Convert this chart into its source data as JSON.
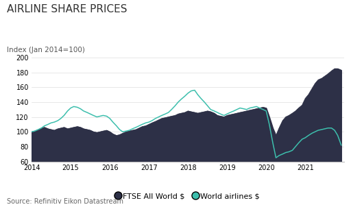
{
  "title": "AIRLINE SHARE PRICES",
  "ylabel_text": "Index (Jan 2014=100)",
  "source": "Source: Refinitiv Eikon Datastream",
  "ylim": [
    60,
    205
  ],
  "yticks": [
    60,
    80,
    100,
    120,
    140,
    160,
    180,
    200
  ],
  "xlim": [
    2014.0,
    2021.99
  ],
  "background_color": "#ffffff",
  "ftse_color": "#2d3047",
  "airlines_color": "#3dbfad",
  "ftse_label": "FTSE All World $",
  "airlines_label": "World airlines $",
  "title_fontsize": 11,
  "source_fontsize": 7,
  "tick_fontsize": 7,
  "ylabel_fontsize": 7.5,
  "legend_fontsize": 8,
  "ftse_data": {
    "x": [
      2014.0,
      2014.08,
      2014.17,
      2014.25,
      2014.33,
      2014.42,
      2014.5,
      2014.58,
      2014.67,
      2014.75,
      2014.83,
      2014.92,
      2015.0,
      2015.08,
      2015.17,
      2015.25,
      2015.33,
      2015.42,
      2015.5,
      2015.58,
      2015.67,
      2015.75,
      2015.83,
      2015.92,
      2016.0,
      2016.08,
      2016.17,
      2016.25,
      2016.33,
      2016.42,
      2016.5,
      2016.58,
      2016.67,
      2016.75,
      2016.83,
      2016.92,
      2017.0,
      2017.08,
      2017.17,
      2017.25,
      2017.33,
      2017.42,
      2017.5,
      2017.58,
      2017.67,
      2017.75,
      2017.83,
      2017.92,
      2018.0,
      2018.08,
      2018.17,
      2018.25,
      2018.33,
      2018.42,
      2018.5,
      2018.58,
      2018.67,
      2018.75,
      2018.83,
      2018.92,
      2019.0,
      2019.08,
      2019.17,
      2019.25,
      2019.33,
      2019.42,
      2019.5,
      2019.58,
      2019.67,
      2019.75,
      2019.83,
      2019.92,
      2020.0,
      2020.08,
      2020.17,
      2020.25,
      2020.33,
      2020.42,
      2020.5,
      2020.58,
      2020.67,
      2020.75,
      2020.83,
      2020.92,
      2021.0,
      2021.08,
      2021.17,
      2021.25,
      2021.33,
      2021.42,
      2021.5,
      2021.58,
      2021.67,
      2021.75,
      2021.83,
      2021.92
    ],
    "y": [
      100,
      101,
      103,
      105,
      106,
      104,
      103,
      102,
      104,
      105,
      106,
      104,
      105,
      106,
      107,
      106,
      104,
      103,
      102,
      100,
      99,
      100,
      101,
      102,
      100,
      97,
      95,
      96,
      98,
      100,
      101,
      102,
      103,
      105,
      107,
      108,
      110,
      112,
      114,
      116,
      118,
      119,
      120,
      121,
      122,
      124,
      125,
      126,
      128,
      127,
      126,
      125,
      126,
      127,
      128,
      127,
      125,
      122,
      121,
      120,
      122,
      123,
      124,
      125,
      126,
      127,
      128,
      129,
      130,
      131,
      132,
      133,
      132,
      120,
      105,
      95,
      105,
      115,
      120,
      122,
      125,
      128,
      132,
      136,
      145,
      150,
      158,
      165,
      170,
      172,
      175,
      178,
      182,
      185,
      185,
      183
    ]
  },
  "airlines_data": {
    "x": [
      2014.0,
      2014.08,
      2014.17,
      2014.25,
      2014.33,
      2014.42,
      2014.5,
      2014.58,
      2014.67,
      2014.75,
      2014.83,
      2014.92,
      2015.0,
      2015.08,
      2015.17,
      2015.25,
      2015.33,
      2015.42,
      2015.5,
      2015.58,
      2015.67,
      2015.75,
      2015.83,
      2015.92,
      2016.0,
      2016.08,
      2016.17,
      2016.25,
      2016.33,
      2016.42,
      2016.5,
      2016.58,
      2016.67,
      2016.75,
      2016.83,
      2016.92,
      2017.0,
      2017.08,
      2017.17,
      2017.25,
      2017.33,
      2017.42,
      2017.5,
      2017.58,
      2017.67,
      2017.75,
      2017.83,
      2017.92,
      2018.0,
      2018.08,
      2018.17,
      2018.25,
      2018.33,
      2018.42,
      2018.5,
      2018.58,
      2018.67,
      2018.75,
      2018.83,
      2018.92,
      2019.0,
      2019.08,
      2019.17,
      2019.25,
      2019.33,
      2019.42,
      2019.5,
      2019.58,
      2019.67,
      2019.75,
      2019.83,
      2019.92,
      2020.0,
      2020.08,
      2020.17,
      2020.25,
      2020.33,
      2020.42,
      2020.5,
      2020.58,
      2020.67,
      2020.75,
      2020.83,
      2020.92,
      2021.0,
      2021.08,
      2021.17,
      2021.25,
      2021.33,
      2021.42,
      2021.5,
      2021.58,
      2021.67,
      2021.75,
      2021.83,
      2021.92
    ],
    "y": [
      100,
      101,
      103,
      105,
      108,
      110,
      112,
      113,
      115,
      118,
      122,
      128,
      132,
      134,
      133,
      131,
      128,
      126,
      124,
      122,
      120,
      121,
      122,
      121,
      118,
      113,
      108,
      103,
      100,
      101,
      102,
      104,
      106,
      108,
      110,
      112,
      113,
      115,
      118,
      120,
      122,
      124,
      126,
      130,
      135,
      140,
      144,
      148,
      152,
      155,
      156,
      150,
      145,
      140,
      135,
      130,
      128,
      126,
      124,
      122,
      124,
      126,
      128,
      130,
      132,
      131,
      130,
      132,
      133,
      134,
      132,
      130,
      128,
      110,
      85,
      65,
      68,
      70,
      72,
      73,
      75,
      80,
      85,
      90,
      92,
      95,
      98,
      100,
      102,
      103,
      104,
      105,
      105,
      102,
      95,
      82
    ]
  }
}
